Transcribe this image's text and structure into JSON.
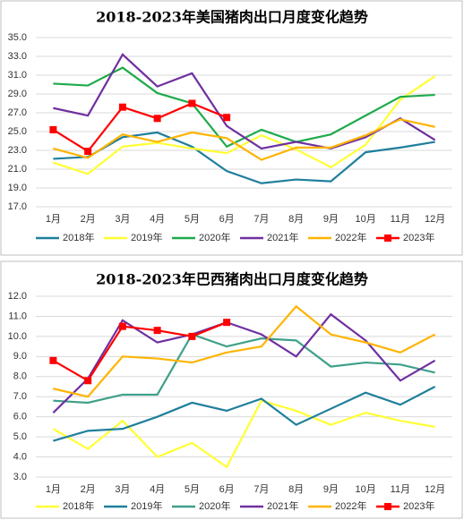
{
  "chart_data": [
    {
      "type": "line",
      "title": "2018-2023年美国猪肉出口月度变化趋势",
      "categories": [
        "1月",
        "2月",
        "3月",
        "4月",
        "5月",
        "6月",
        "7月",
        "8月",
        "9月",
        "10月",
        "11月",
        "12月"
      ],
      "ylim": [
        17,
        35
      ],
      "yticks": [
        {
          "value": 17,
          "label": "17.0"
        },
        {
          "value": 19,
          "label": "19.0"
        },
        {
          "value": 21,
          "label": "21.0"
        },
        {
          "value": 23,
          "label": "23.0"
        },
        {
          "value": 25,
          "label": "25.0"
        },
        {
          "value": 27,
          "label": "27.0"
        },
        {
          "value": 29,
          "label": "29.0"
        },
        {
          "value": 31,
          "label": "31.0"
        },
        {
          "value": 33,
          "label": "33.0"
        },
        {
          "value": 35,
          "label": "35.0"
        }
      ],
      "grid": true,
      "series": [
        {
          "name": "2018年",
          "color": "#1f7f9c",
          "values": [
            22.1,
            22.3,
            24.4,
            24.9,
            23.4,
            20.8,
            19.5,
            19.9,
            19.7,
            22.8,
            23.3,
            23.9
          ]
        },
        {
          "name": "2019年",
          "color": "#ffff33",
          "values": [
            21.7,
            20.5,
            23.4,
            23.8,
            23.2,
            22.7,
            24.6,
            23.1,
            21.2,
            23.6,
            28.4,
            30.9
          ]
        },
        {
          "name": "2020年",
          "color": "#1faa4a",
          "values": [
            30.1,
            29.9,
            31.8,
            29.1,
            28.0,
            23.4,
            25.2,
            23.9,
            24.7,
            26.7,
            28.7,
            28.9
          ]
        },
        {
          "name": "2021年",
          "color": "#7030a0",
          "values": [
            27.5,
            26.7,
            33.2,
            29.8,
            31.2,
            25.6,
            23.2,
            23.9,
            23.2,
            24.4,
            26.4,
            24.1
          ]
        },
        {
          "name": "2022年",
          "color": "#ffb400",
          "values": [
            23.2,
            22.2,
            24.7,
            23.9,
            24.9,
            24.3,
            22.0,
            23.3,
            23.3,
            24.6,
            26.3,
            25.5
          ]
        },
        {
          "name": "2023年",
          "color": "#ff0000",
          "marker": "square",
          "values": [
            25.2,
            22.9,
            27.6,
            26.4,
            28.0,
            26.5,
            null,
            null,
            null,
            null,
            null,
            null
          ]
        }
      ]
    },
    {
      "type": "line",
      "title": "2018-2023年巴西猪肉出口月度变化趋势",
      "categories": [
        "1月",
        "2月",
        "3月",
        "4月",
        "5月",
        "6月",
        "7月",
        "8月",
        "9月",
        "10月",
        "11月",
        "12月"
      ],
      "ylim": [
        3,
        12
      ],
      "yticks": [
        {
          "value": 3,
          "label": "3.0"
        },
        {
          "value": 4,
          "label": "4.0"
        },
        {
          "value": 5,
          "label": "5.0"
        },
        {
          "value": 6,
          "label": "6.0"
        },
        {
          "value": 7,
          "label": "7.0"
        },
        {
          "value": 8,
          "label": "8.0"
        },
        {
          "value": 9,
          "label": "9.0"
        },
        {
          "value": 10,
          "label": "10.0"
        },
        {
          "value": 11,
          "label": "11.0"
        },
        {
          "value": 12,
          "label": "12.0"
        }
      ],
      "grid": true,
      "series": [
        {
          "name": "2018年",
          "color": "#ffff33",
          "values": [
            5.4,
            4.4,
            5.8,
            4.0,
            4.7,
            3.5,
            6.8,
            6.3,
            5.6,
            6.2,
            5.8,
            5.5
          ]
        },
        {
          "name": "2019年",
          "color": "#1f7f9c",
          "values": [
            4.8,
            5.3,
            5.4,
            6.0,
            6.7,
            6.3,
            6.9,
            5.6,
            6.4,
            7.2,
            6.6,
            7.5
          ]
        },
        {
          "name": "2020年",
          "color": "#3fa08a",
          "values": [
            6.8,
            6.7,
            7.1,
            7.1,
            10.1,
            9.5,
            9.9,
            9.8,
            8.5,
            8.7,
            8.6,
            8.2
          ]
        },
        {
          "name": "2021年",
          "color": "#7030a0",
          "values": [
            6.2,
            7.9,
            10.8,
            9.7,
            10.1,
            10.7,
            10.1,
            9.0,
            11.1,
            9.8,
            7.8,
            8.8
          ]
        },
        {
          "name": "2022年",
          "color": "#ffb400",
          "values": [
            7.4,
            7.0,
            9.0,
            8.9,
            8.7,
            9.2,
            9.5,
            11.5,
            10.1,
            9.7,
            9.2,
            10.1
          ]
        },
        {
          "name": "2023年",
          "color": "#ff0000",
          "marker": "square",
          "values": [
            8.8,
            7.8,
            10.5,
            10.3,
            10.0,
            10.7,
            null,
            null,
            null,
            null,
            null,
            null
          ]
        }
      ]
    }
  ]
}
